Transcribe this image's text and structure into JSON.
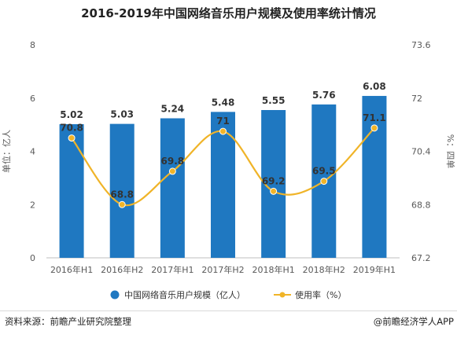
{
  "colors": {
    "bar": "#1f78c1",
    "line": "#f0b428",
    "grid": "#e6e6e6"
  },
  "chart_data": {
    "type": "bar+line",
    "title": "2016-2019年中国网络音乐用户规模及使用率统计情况",
    "categories": [
      "2016年H1",
      "2016年H2",
      "2017年H1",
      "2017年H2",
      "2018年H1",
      "2018年H2",
      "2019年H1"
    ],
    "series": [
      {
        "name": "中国网络音乐用户规模（亿人）",
        "type": "bar",
        "axis": "left",
        "values": [
          5.02,
          5.03,
          5.24,
          5.48,
          5.55,
          5.76,
          6.08
        ],
        "labels": [
          "5.02",
          "5.03",
          "5.24",
          "5.48",
          "5.55",
          "5.76",
          "6.08"
        ]
      },
      {
        "name": "使用率（%）",
        "type": "line",
        "axis": "right",
        "values": [
          70.8,
          68.8,
          69.8,
          71,
          69.2,
          69.5,
          71.1
        ],
        "labels": [
          "70.8",
          "68.8",
          "69.8",
          "71",
          "69.2",
          "69.5",
          "71.1"
        ]
      }
    ],
    "ylabel_left": "单位：亿人",
    "ylabel_right": "%：四单",
    "ylim_left": [
      0,
      8
    ],
    "ylim_right": [
      67.2,
      73.6
    ],
    "yticks_left": [
      "0",
      "2",
      "4",
      "6",
      "8"
    ],
    "yticks_right": [
      "67.2",
      "68.8",
      "70.4",
      "72",
      "73.6"
    ],
    "grid": false,
    "legend": "bottom"
  },
  "footer": {
    "source": "资料来源：前瞻产业研究院整理",
    "brand": "@前瞻经济学人APP"
  }
}
